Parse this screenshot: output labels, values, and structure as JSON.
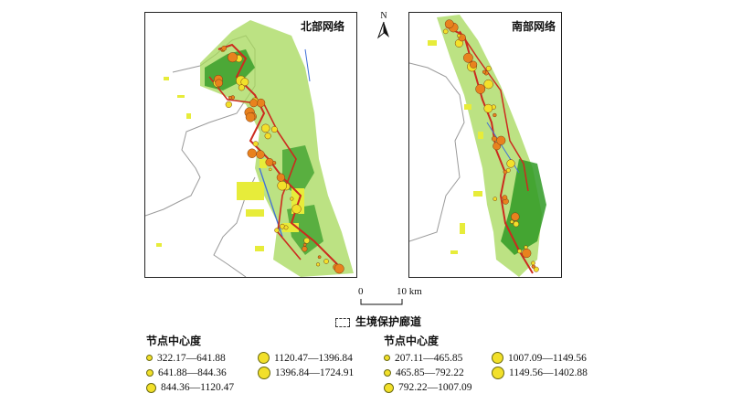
{
  "north_panel": {
    "title": "北部网络"
  },
  "south_panel": {
    "title": "南部网络"
  },
  "north_arrow": {
    "label": "N"
  },
  "scale": {
    "start": "0",
    "end": "10 km"
  },
  "corridor_legend": {
    "label": "生境保护廊道"
  },
  "legend_north": {
    "title": "节点中心度",
    "items": [
      {
        "label": "322.17—641.88"
      },
      {
        "label": "1120.47—1396.84"
      },
      {
        "label": "641.88—844.36"
      },
      {
        "label": "1396.84—1724.91"
      },
      {
        "label": "844.36—1120.47"
      }
    ]
  },
  "legend_south": {
    "title": "节点中心度",
    "items": [
      {
        "label": "207.11—465.85"
      },
      {
        "label": "1007.09—1149.56"
      },
      {
        "label": "465.85—792.22"
      },
      {
        "label": "1149.56—1402.88"
      },
      {
        "label": "792.22—1007.09"
      }
    ]
  },
  "colors": {
    "land_green": "#2f9a24",
    "patch_lightgreen": "#a6d85a",
    "patch_yellow": "#e7ec3a",
    "corridor_red": "#cc2a1e",
    "node_orange": "#e8821e",
    "node_yellow": "#f2e02a",
    "link_blue": "#3f6fd8",
    "outline_gray": "#9a9a9a"
  }
}
